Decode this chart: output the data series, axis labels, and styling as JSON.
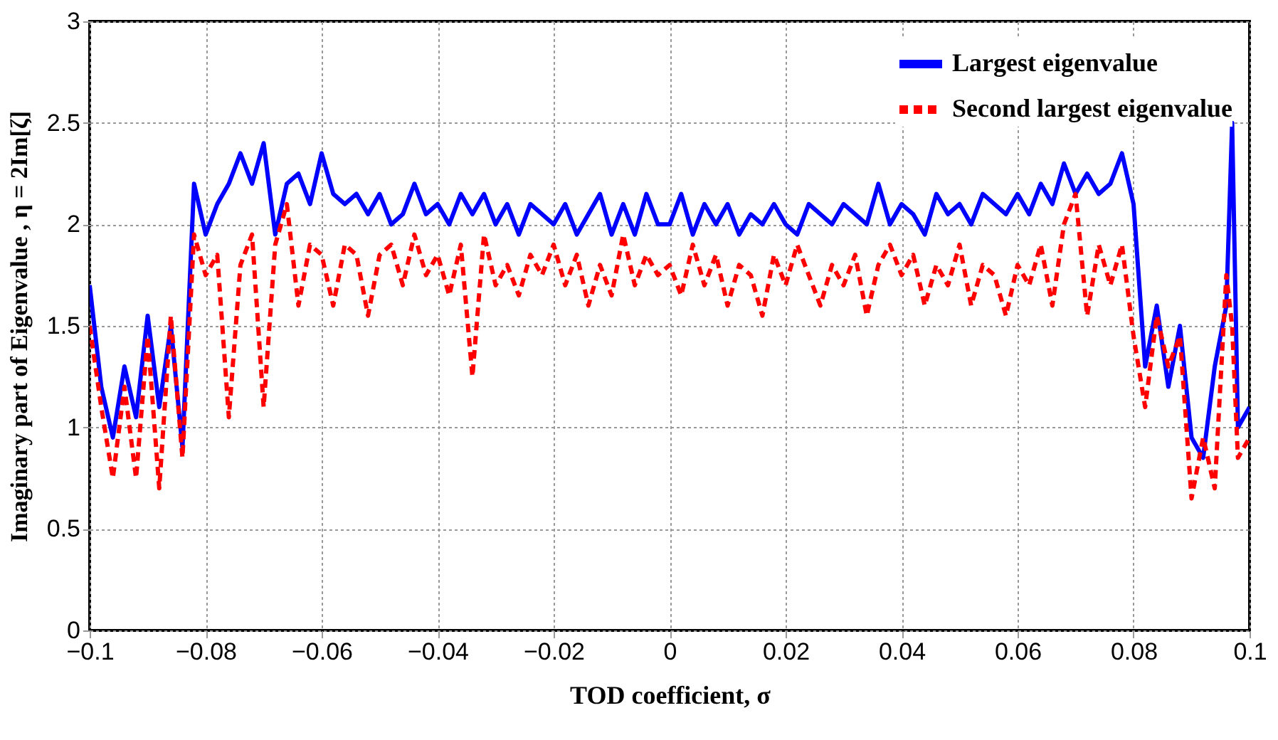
{
  "chart_data": {
    "type": "line",
    "xlabel": "TOD coefficient, σ",
    "ylabel": "Imaginary part of Eigenvalue , η = 2Im[ζ]",
    "x": [
      -0.1,
      -0.098,
      -0.096,
      -0.094,
      -0.092,
      -0.09,
      -0.088,
      -0.086,
      -0.084,
      -0.082,
      -0.08,
      -0.078,
      -0.076,
      -0.074,
      -0.072,
      -0.07,
      -0.068,
      -0.066,
      -0.064,
      -0.062,
      -0.06,
      -0.058,
      -0.056,
      -0.054,
      -0.052,
      -0.05,
      -0.048,
      -0.046,
      -0.044,
      -0.042,
      -0.04,
      -0.038,
      -0.036,
      -0.034,
      -0.032,
      -0.03,
      -0.028,
      -0.026,
      -0.024,
      -0.022,
      -0.02,
      -0.018,
      -0.016,
      -0.014,
      -0.012,
      -0.01,
      -0.008,
      -0.006,
      -0.004,
      -0.002,
      0,
      0.002,
      0.004,
      0.006,
      0.008,
      0.01,
      0.012,
      0.014,
      0.016,
      0.018,
      0.02,
      0.022,
      0.024,
      0.026,
      0.028,
      0.03,
      0.032,
      0.034,
      0.036,
      0.038,
      0.04,
      0.042,
      0.044,
      0.046,
      0.048,
      0.05,
      0.052,
      0.054,
      0.056,
      0.058,
      0.06,
      0.062,
      0.064,
      0.066,
      0.068,
      0.07,
      0.072,
      0.074,
      0.076,
      0.078,
      0.08,
      0.082,
      0.084,
      0.086,
      0.088,
      0.09,
      0.092,
      0.094,
      0.096,
      0.097,
      0.098,
      0.1
    ],
    "series": [
      {
        "name": "Largest eigenvalue",
        "color": "#0000ff",
        "line_style": "solid",
        "values": [
          1.7,
          1.2,
          0.95,
          1.3,
          1.05,
          1.55,
          1.1,
          1.5,
          0.9,
          2.2,
          1.95,
          2.1,
          2.2,
          2.35,
          2.2,
          2.4,
          1.95,
          2.2,
          2.25,
          2.1,
          2.35,
          2.15,
          2.1,
          2.15,
          2.05,
          2.15,
          2.0,
          2.05,
          2.2,
          2.05,
          2.1,
          2.0,
          2.15,
          2.05,
          2.15,
          2.0,
          2.1,
          1.95,
          2.1,
          2.05,
          2.0,
          2.1,
          1.95,
          2.05,
          2.15,
          1.95,
          2.1,
          1.95,
          2.15,
          2.0,
          2.0,
          2.15,
          1.95,
          2.1,
          2.0,
          2.1,
          1.95,
          2.05,
          2.0,
          2.1,
          2.0,
          1.95,
          2.1,
          2.05,
          2.0,
          2.1,
          2.05,
          2.0,
          2.2,
          2.0,
          2.1,
          2.05,
          1.95,
          2.15,
          2.05,
          2.1,
          2.0,
          2.15,
          2.1,
          2.05,
          2.15,
          2.05,
          2.2,
          2.1,
          2.3,
          2.15,
          2.25,
          2.15,
          2.2,
          2.35,
          2.1,
          1.3,
          1.6,
          1.2,
          1.5,
          0.95,
          0.85,
          1.3,
          1.6,
          2.5,
          1.0,
          1.1
        ]
      },
      {
        "name": "Second largest eigenvalue",
        "color": "#ff0000",
        "line_style": "dashed",
        "values": [
          1.5,
          1.1,
          0.75,
          1.2,
          0.75,
          1.45,
          0.7,
          1.55,
          0.85,
          1.95,
          1.75,
          1.85,
          1.05,
          1.8,
          1.95,
          1.1,
          1.9,
          2.1,
          1.6,
          1.9,
          1.85,
          1.6,
          1.9,
          1.85,
          1.55,
          1.85,
          1.9,
          1.7,
          1.95,
          1.75,
          1.85,
          1.65,
          1.9,
          1.25,
          1.95,
          1.7,
          1.8,
          1.65,
          1.85,
          1.75,
          1.9,
          1.7,
          1.85,
          1.6,
          1.8,
          1.65,
          1.95,
          1.7,
          1.85,
          1.75,
          1.8,
          1.65,
          1.9,
          1.7,
          1.85,
          1.6,
          1.8,
          1.75,
          1.55,
          1.85,
          1.7,
          1.9,
          1.75,
          1.6,
          1.8,
          1.7,
          1.85,
          1.55,
          1.8,
          1.9,
          1.75,
          1.85,
          1.6,
          1.8,
          1.7,
          1.9,
          1.6,
          1.8,
          1.75,
          1.55,
          1.8,
          1.7,
          1.9,
          1.6,
          2.0,
          2.15,
          1.55,
          1.9,
          1.7,
          1.9,
          1.45,
          1.1,
          1.55,
          1.3,
          1.45,
          0.65,
          0.95,
          0.7,
          1.75,
          1.5,
          0.85,
          0.95
        ]
      }
    ],
    "xlim": [
      -0.1,
      0.1
    ],
    "xticks": [
      -0.1,
      -0.08,
      -0.06,
      -0.04,
      -0.02,
      0,
      0.02,
      0.04,
      0.06,
      0.08,
      0.1
    ],
    "ylim": [
      0,
      3
    ],
    "yticks": [
      0,
      0.5,
      1,
      1.5,
      2,
      2.5,
      3
    ],
    "grid": true,
    "legend": "top right"
  }
}
